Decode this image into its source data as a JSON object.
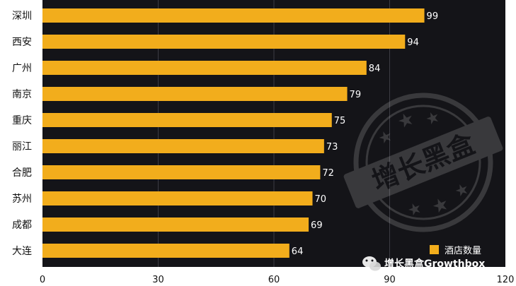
{
  "chart_data": {
    "type": "bar",
    "orientation": "horizontal",
    "categories": [
      "深圳",
      "西安",
      "广州",
      "南京",
      "重庆",
      "丽江",
      "合肥",
      "苏州",
      "成都",
      "大连"
    ],
    "series": [
      {
        "name": "酒店数量",
        "values": [
          99,
          94,
          84,
          79,
          75,
          73,
          72,
          70,
          69,
          64
        ]
      }
    ],
    "xlim": [
      0,
      120
    ],
    "xticks": [
      "0",
      "30",
      "60",
      "90",
      "120"
    ],
    "grid": true,
    "legend_position": "bottom-right",
    "colors": {
      "bar": "#f2ad1c",
      "plot_background": "#141418",
      "grid": "#3c3c44",
      "page_background": "#ffffff"
    }
  },
  "watermark": {
    "stamp_text": "增长黑盒",
    "brand_text": "增长黑盒Growthbox",
    "brand_icon": "wechat-icon"
  }
}
